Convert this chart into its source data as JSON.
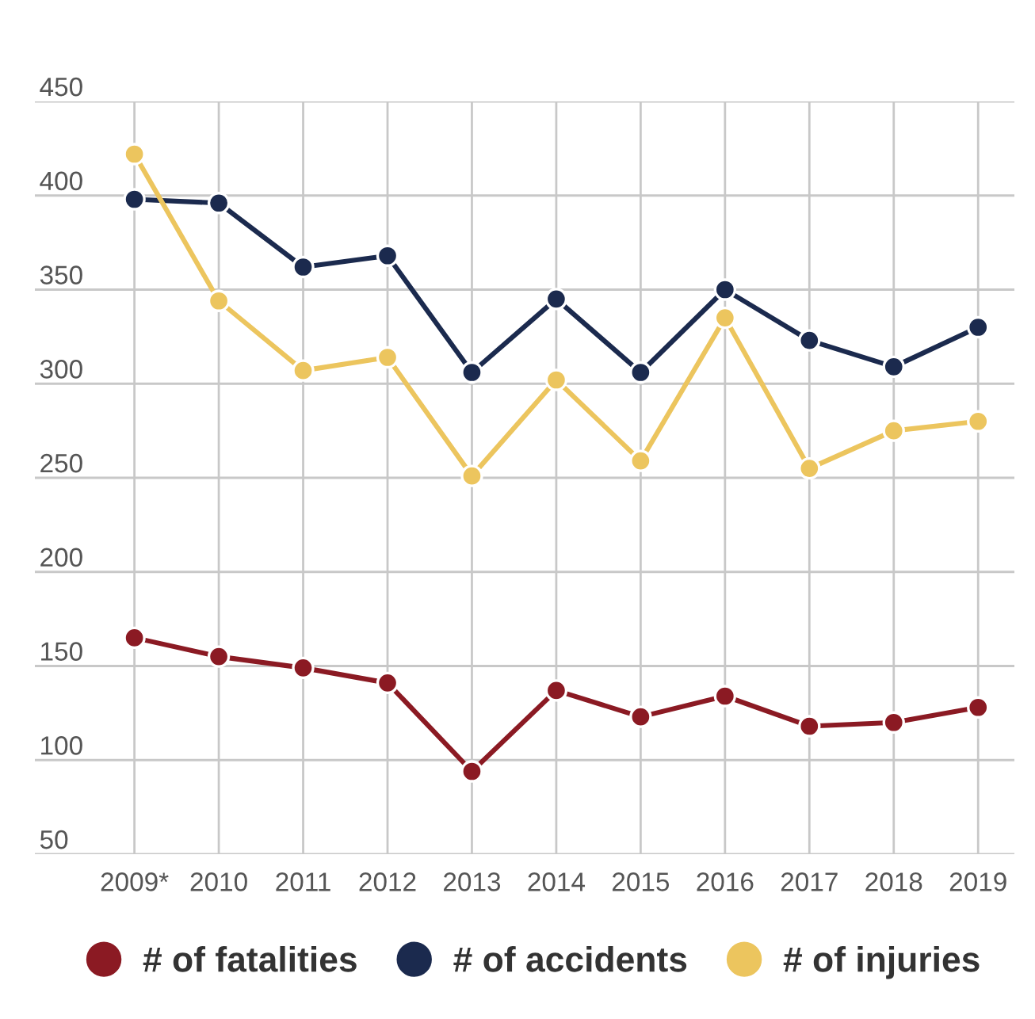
{
  "chart_data": {
    "type": "line",
    "categories": [
      "2009*",
      "2010",
      "2011",
      "2012",
      "2013",
      "2014",
      "2015",
      "2016",
      "2017",
      "2018",
      "2019"
    ],
    "series": [
      {
        "name": "# of fatalities",
        "color": "#8b1a23",
        "values": [
          165,
          155,
          149,
          141,
          94,
          137,
          123,
          134,
          118,
          120,
          128
        ]
      },
      {
        "name": "# of accidents",
        "color": "#1b2a4e",
        "values": [
          398,
          396,
          362,
          368,
          306,
          345,
          306,
          350,
          323,
          309,
          330
        ]
      },
      {
        "name": "# of injuries",
        "color": "#ecc55e",
        "values": [
          422,
          344,
          307,
          314,
          251,
          302,
          259,
          335,
          255,
          275,
          280
        ]
      }
    ],
    "ylim": [
      50,
      450
    ],
    "yticks": [
      50,
      100,
      150,
      200,
      250,
      300,
      350,
      400,
      450
    ],
    "grid": true,
    "legend": "bottom",
    "marker": "circle",
    "line_style": "solid"
  }
}
